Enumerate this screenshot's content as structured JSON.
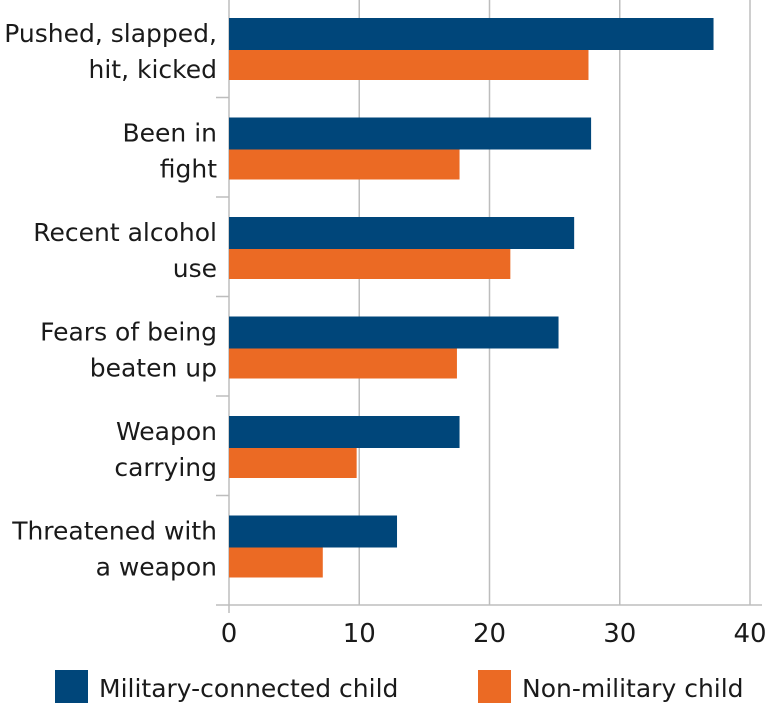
{
  "chart_data": {
    "type": "bar",
    "orientation": "horizontal",
    "categories": [
      [
        "Pushed, slapped,",
        "hit, kicked"
      ],
      [
        "Been in",
        "fight"
      ],
      [
        "Recent alcohol",
        "use"
      ],
      [
        "Fears of being",
        "beaten up"
      ],
      [
        "Weapon",
        "carrying"
      ],
      [
        "Threatened with",
        "a weapon"
      ]
    ],
    "series": [
      {
        "name": "Military-connected child",
        "color": "#00467A",
        "values": [
          37.2,
          27.8,
          26.5,
          25.3,
          17.7,
          12.9
        ]
      },
      {
        "name": "Non-military child",
        "color": "#EB6A24",
        "values": [
          27.6,
          17.7,
          21.6,
          17.5,
          9.8,
          7.2
        ]
      }
    ],
    "xlim": [
      0,
      40
    ],
    "xticks": [
      "0",
      "10",
      "20",
      "30",
      "40"
    ],
    "title": "",
    "xlabel": "",
    "ylabel": "",
    "grid": "vertical",
    "legend": "bottom"
  }
}
